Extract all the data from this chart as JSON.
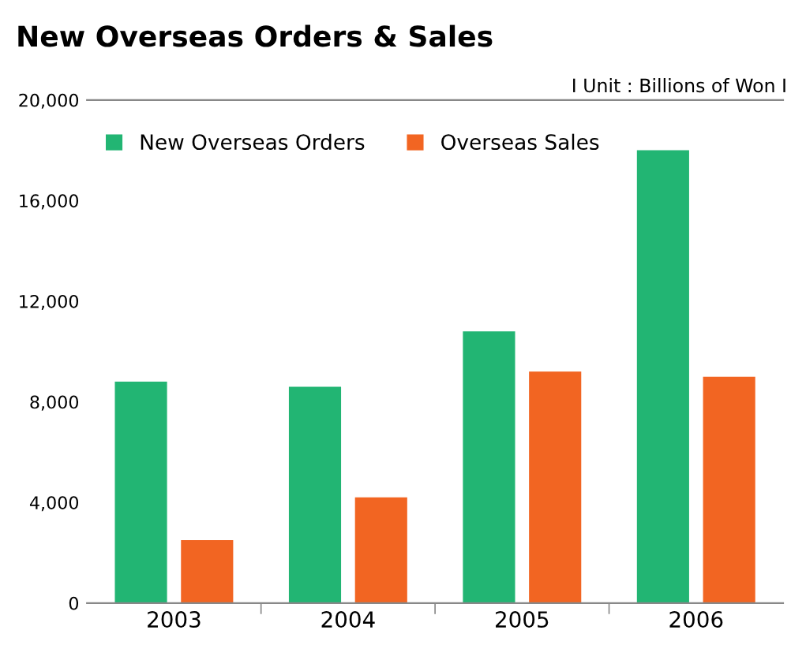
{
  "chart_data": {
    "type": "bar",
    "title": "New Overseas Orders & Sales",
    "annotations": [
      "I Unit : Billions of Won I"
    ],
    "categories": [
      "2003",
      "2004",
      "2005",
      "2006"
    ],
    "series": [
      {
        "name": "New Overseas Orders",
        "color": "#22b573",
        "values": [
          8800,
          8600,
          10800,
          18000
        ]
      },
      {
        "name": "Overseas Sales",
        "color": "#f26522",
        "values": [
          2500,
          4200,
          9200,
          9000
        ]
      }
    ],
    "ylim": [
      0,
      20000
    ],
    "yticks": [
      {
        "value": 0,
        "label": "0"
      },
      {
        "value": 4000,
        "label": "4,000"
      },
      {
        "value": 8000,
        "label": "8,000"
      },
      {
        "value": 12000,
        "label": "12,000"
      },
      {
        "value": 16000,
        "label": "16,000"
      },
      {
        "value": 20000,
        "label": "20,000"
      }
    ],
    "grid": false,
    "legend": "top left"
  }
}
